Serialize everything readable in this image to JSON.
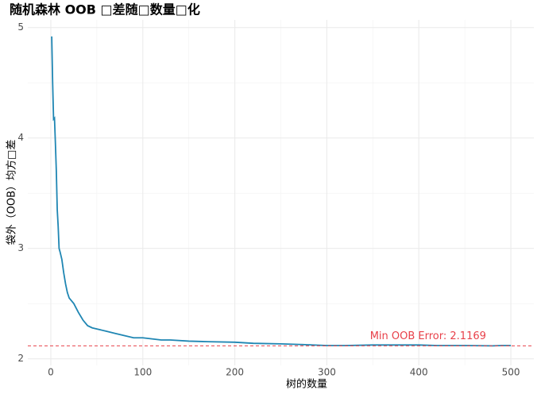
{
  "chart_data": {
    "type": "line",
    "title": "随机森林 OOB □差随□数量□化",
    "x_label": "树的数量",
    "y_label": "袋外（OOB）均方□差",
    "x": [
      1,
      2,
      3,
      4,
      5,
      6,
      7,
      8,
      9,
      10,
      12,
      14,
      16,
      18,
      20,
      25,
      30,
      35,
      40,
      45,
      50,
      60,
      70,
      80,
      90,
      100,
      110,
      120,
      130,
      150,
      170,
      200,
      220,
      250,
      270,
      300,
      320,
      350,
      380,
      400,
      420,
      450,
      480,
      490,
      500
    ],
    "series": [
      {
        "name": "OOB",
        "color": "#1f86b3",
        "values": [
          4.92,
          4.5,
          4.17,
          4.18,
          3.95,
          3.7,
          3.35,
          3.2,
          3.0,
          2.97,
          2.9,
          2.78,
          2.68,
          2.6,
          2.55,
          2.5,
          2.42,
          2.35,
          2.3,
          2.28,
          2.27,
          2.25,
          2.23,
          2.21,
          2.19,
          2.19,
          2.18,
          2.17,
          2.17,
          2.16,
          2.155,
          2.15,
          2.14,
          2.135,
          2.13,
          2.12,
          2.12,
          2.125,
          2.125,
          2.125,
          2.12,
          2.12,
          2.117,
          2.12,
          2.12
        ]
      }
    ],
    "xlim": [
      -25,
      525
    ],
    "ylim": [
      1.94,
      5.07
    ],
    "xticks": [
      0,
      100,
      200,
      300,
      400,
      500
    ],
    "yticks": [
      2,
      3,
      4,
      5
    ],
    "xminor": [
      50,
      150,
      250,
      350,
      450
    ],
    "yminor": [
      2.5,
      3.5,
      4.5
    ],
    "grid": true,
    "hline": {
      "value": 2.1169,
      "color": "#e8414a",
      "label": "Min OOB Error: 2.1169",
      "label_x": 410
    }
  }
}
